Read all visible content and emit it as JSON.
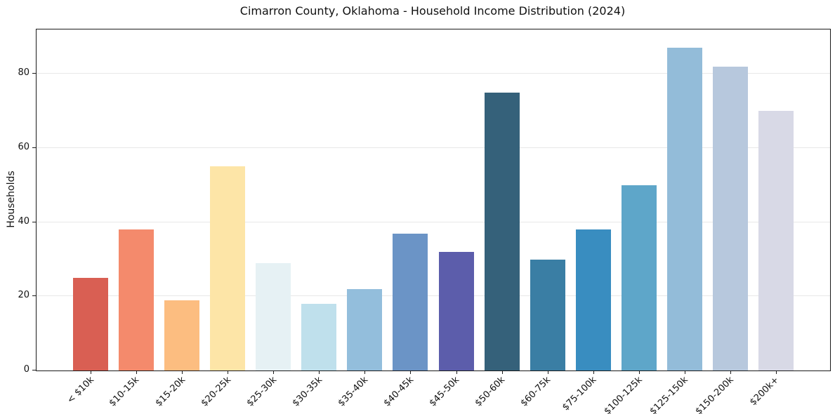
{
  "chart_data": {
    "type": "bar",
    "title": "Cimarron County, Oklahoma - Household Income Distribution (2024)",
    "xlabel": "",
    "ylabel": "Households",
    "categories": [
      "< $10k",
      "$10-15k",
      "$15-20k",
      "$20-25k",
      "$25-30k",
      "$30-35k",
      "$35-40k",
      "$40-45k",
      "$45-50k",
      "$50-60k",
      "$60-75k",
      "$75-100k",
      "$100-125k",
      "$125-150k",
      "$150-200k",
      "$200k+"
    ],
    "values": [
      25,
      38,
      19,
      55,
      29,
      18,
      22,
      37,
      32,
      75,
      30,
      38,
      50,
      87,
      82,
      70
    ],
    "bar_colors": [
      "#d95f53",
      "#f48a6c",
      "#fcbd80",
      "#fde5a7",
      "#e6f1f4",
      "#bfe0ec",
      "#93bedc",
      "#6b94c6",
      "#5c5dab",
      "#35617a",
      "#3a7ea4",
      "#398dc0",
      "#5ea6c9",
      "#93bcd9",
      "#b7c8dd",
      "#d8d9e6"
    ],
    "ylim": [
      0,
      92
    ],
    "yticks": [
      0,
      20,
      40,
      60,
      80
    ],
    "grid": "horizontal",
    "x_tick_rotation": 45,
    "legend": "none",
    "spine_color": "#1a1a1a",
    "grid_color": "#e8e8e8"
  }
}
